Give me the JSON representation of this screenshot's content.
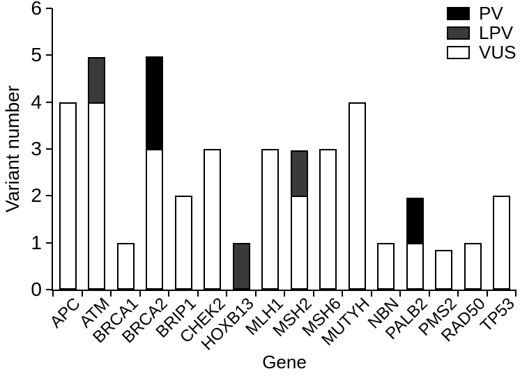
{
  "figure": {
    "y_axis_title": "Variant number",
    "x_axis_title": "Gene"
  },
  "legend": {
    "position": "top-right",
    "items": [
      {
        "label": "PV",
        "color": "#000000"
      },
      {
        "label": "LPV",
        "color": "#3a3a3a"
      },
      {
        "label": "VUS",
        "color": "#ffffff"
      }
    ]
  },
  "chart_data": {
    "type": "bar",
    "stacked": true,
    "title": "",
    "xlabel": "Gene",
    "ylabel": "Variant number",
    "ylim": [
      0,
      6
    ],
    "yticks": [
      0,
      1,
      2,
      3,
      4,
      5,
      6
    ],
    "grid": false,
    "legend_position": "top-right",
    "axis_color": "#000000",
    "bar_border_color": "#000000",
    "categories": [
      "APC",
      "ATM",
      "BRCA1",
      "BRCA2",
      "BRIP1",
      "CHEK2",
      "HOXB13",
      "MLH1",
      "MSH2",
      "MSH6",
      "MUTYH",
      "NBN",
      "PALB2",
      "PMS2",
      "RAD50",
      "TP53"
    ],
    "series": [
      {
        "name": "PV",
        "color": "#000000",
        "values": [
          0,
          0,
          0,
          2,
          0,
          0,
          0,
          0,
          0,
          0,
          0,
          0,
          1,
          0,
          0,
          0
        ]
      },
      {
        "name": "LPV",
        "color": "#3a3a3a",
        "values": [
          0,
          1,
          0,
          0,
          0,
          0,
          1,
          0,
          1,
          0,
          0,
          0,
          0,
          0,
          0,
          0
        ]
      },
      {
        "name": "VUS",
        "color": "#ffffff",
        "values": [
          4,
          4,
          1,
          3,
          2,
          3,
          0,
          3,
          2,
          3,
          4,
          1,
          1,
          0.85,
          1,
          2
        ]
      }
    ]
  }
}
